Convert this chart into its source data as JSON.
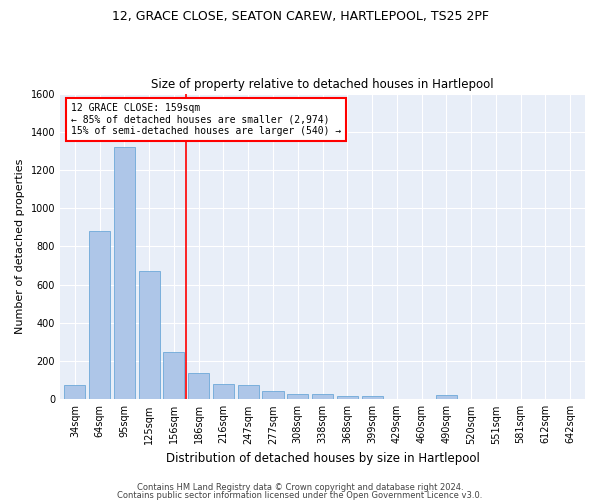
{
  "title1": "12, GRACE CLOSE, SEATON CAREW, HARTLEPOOL, TS25 2PF",
  "title2": "Size of property relative to detached houses in Hartlepool",
  "xlabel": "Distribution of detached houses by size in Hartlepool",
  "ylabel": "Number of detached properties",
  "footnote1": "Contains HM Land Registry data © Crown copyright and database right 2024.",
  "footnote2": "Contains public sector information licensed under the Open Government Licence v3.0.",
  "bar_labels": [
    "34sqm",
    "64sqm",
    "95sqm",
    "125sqm",
    "156sqm",
    "186sqm",
    "216sqm",
    "247sqm",
    "277sqm",
    "308sqm",
    "338sqm",
    "368sqm",
    "399sqm",
    "429sqm",
    "460sqm",
    "490sqm",
    "520sqm",
    "551sqm",
    "581sqm",
    "612sqm",
    "642sqm"
  ],
  "bar_values": [
    75,
    880,
    1320,
    670,
    245,
    140,
    80,
    75,
    45,
    28,
    27,
    15,
    15,
    0,
    0,
    20,
    0,
    0,
    0,
    0,
    0
  ],
  "bar_color": "#aec6e8",
  "bar_edgecolor": "#5a9fd4",
  "vline_x": 4.5,
  "annotation_text_line1": "12 GRACE CLOSE: 159sqm",
  "annotation_text_line2": "← 85% of detached houses are smaller (2,974)",
  "annotation_text_line3": "15% of semi-detached houses are larger (540) →",
  "vline_color": "red",
  "ylim": [
    0,
    1600
  ],
  "yticks": [
    0,
    200,
    400,
    600,
    800,
    1000,
    1200,
    1400,
    1600
  ],
  "bg_color": "#e8eef8",
  "grid_color": "white",
  "title1_fontsize": 9,
  "title2_fontsize": 8.5,
  "ylabel_fontsize": 8,
  "xlabel_fontsize": 8.5,
  "tick_fontsize": 7,
  "footnote_fontsize": 6,
  "ann_fontsize": 7
}
